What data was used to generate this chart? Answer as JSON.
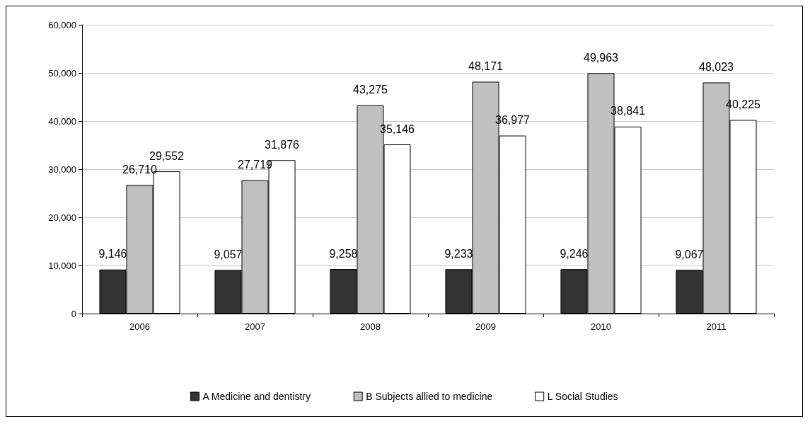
{
  "chart_data": {
    "type": "bar",
    "categories": [
      "2006",
      "2007",
      "2008",
      "2009",
      "2010",
      "2011"
    ],
    "series": [
      {
        "name": "A Medicine and dentistry",
        "color": "#333333",
        "values": [
          9146,
          9057,
          9258,
          9233,
          9246,
          9067
        ],
        "value_labels": [
          "9,146",
          "9,057",
          "9,258",
          "9,233",
          "9,246",
          "9,067"
        ]
      },
      {
        "name": "B Subjects allied to medicine",
        "color": "#c0c0c0",
        "values": [
          26710,
          27719,
          43275,
          48171,
          49963,
          48023
        ],
        "value_labels": [
          "26,710",
          "27,719",
          "43,275",
          "48,171",
          "49,963",
          "48,023"
        ]
      },
      {
        "name": "L Social Studies",
        "color": "#ffffff",
        "values": [
          29552,
          31876,
          35146,
          36977,
          38841,
          40225
        ],
        "value_labels": [
          "29,552",
          "31,876",
          "35,146",
          "36,977",
          "38,841",
          "40,225"
        ]
      }
    ],
    "ylim": [
      0,
      60000
    ],
    "yticks": [
      0,
      {
        "value": 10000,
        "label": "10,000"
      },
      {
        "value": 20000,
        "label": "20,000"
      },
      {
        "value": 30000,
        "label": "30,000"
      },
      {
        "value": 40000,
        "label": "40,000"
      },
      {
        "value": 50000,
        "label": "50,000"
      },
      {
        "value": 60000,
        "label": "60,000"
      }
    ],
    "grid": "y",
    "legend": "bottom"
  }
}
